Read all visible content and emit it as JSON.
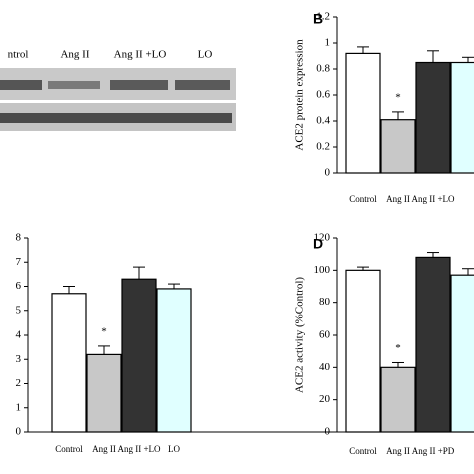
{
  "chart_data": [
    {
      "type": "blot",
      "categories": [
        "ntrol",
        "Ang II",
        "Ang II +LO",
        "LO"
      ]
    },
    {
      "type": "bar",
      "panel": "B",
      "ylabel": "ACE2 protein expression",
      "categories": [
        "Control",
        "Ang II",
        "Ang II +LO",
        null
      ],
      "values": [
        0.92,
        0.41,
        0.85,
        0.85
      ],
      "errors": [
        0.05,
        0.06,
        0.09,
        0.04
      ],
      "colors": [
        "#ffffff",
        "#c8c8c8",
        "#333333",
        "#e0ffff"
      ],
      "ylim": [
        0,
        1.2
      ],
      "yticks": [
        0,
        0.2,
        0.4,
        0.6,
        0.8,
        1,
        1.2
      ],
      "annotations": [
        "*"
      ]
    },
    {
      "type": "bar",
      "categories": [
        "Control",
        "Ang II",
        "Ang II +LO",
        "LO"
      ],
      "values": [
        5.7,
        3.2,
        6.3,
        5.9
      ],
      "errors": [
        0.3,
        0.35,
        0.5,
        0.2
      ],
      "colors": [
        "#ffffff",
        "#c8c8c8",
        "#333333",
        "#e0ffff"
      ],
      "ylim": [
        0,
        8
      ],
      "yticks": [
        0,
        1,
        2,
        3,
        4,
        5,
        6,
        7,
        8
      ],
      "annotations": [
        "*"
      ]
    },
    {
      "type": "bar",
      "panel": "D",
      "ylabel": "ACE2 activity (%Control)",
      "categories": [
        "Control",
        "Ang II",
        "Ang II +PD",
        null
      ],
      "values": [
        100,
        40,
        108,
        97
      ],
      "errors": [
        2,
        3,
        3,
        4
      ],
      "colors": [
        "#ffffff",
        "#c8c8c8",
        "#333333",
        "#e0ffff"
      ],
      "ylim": [
        0,
        120
      ],
      "yticks": [
        0,
        20,
        40,
        60,
        80,
        100,
        120
      ],
      "annotations": [
        "*"
      ]
    }
  ]
}
